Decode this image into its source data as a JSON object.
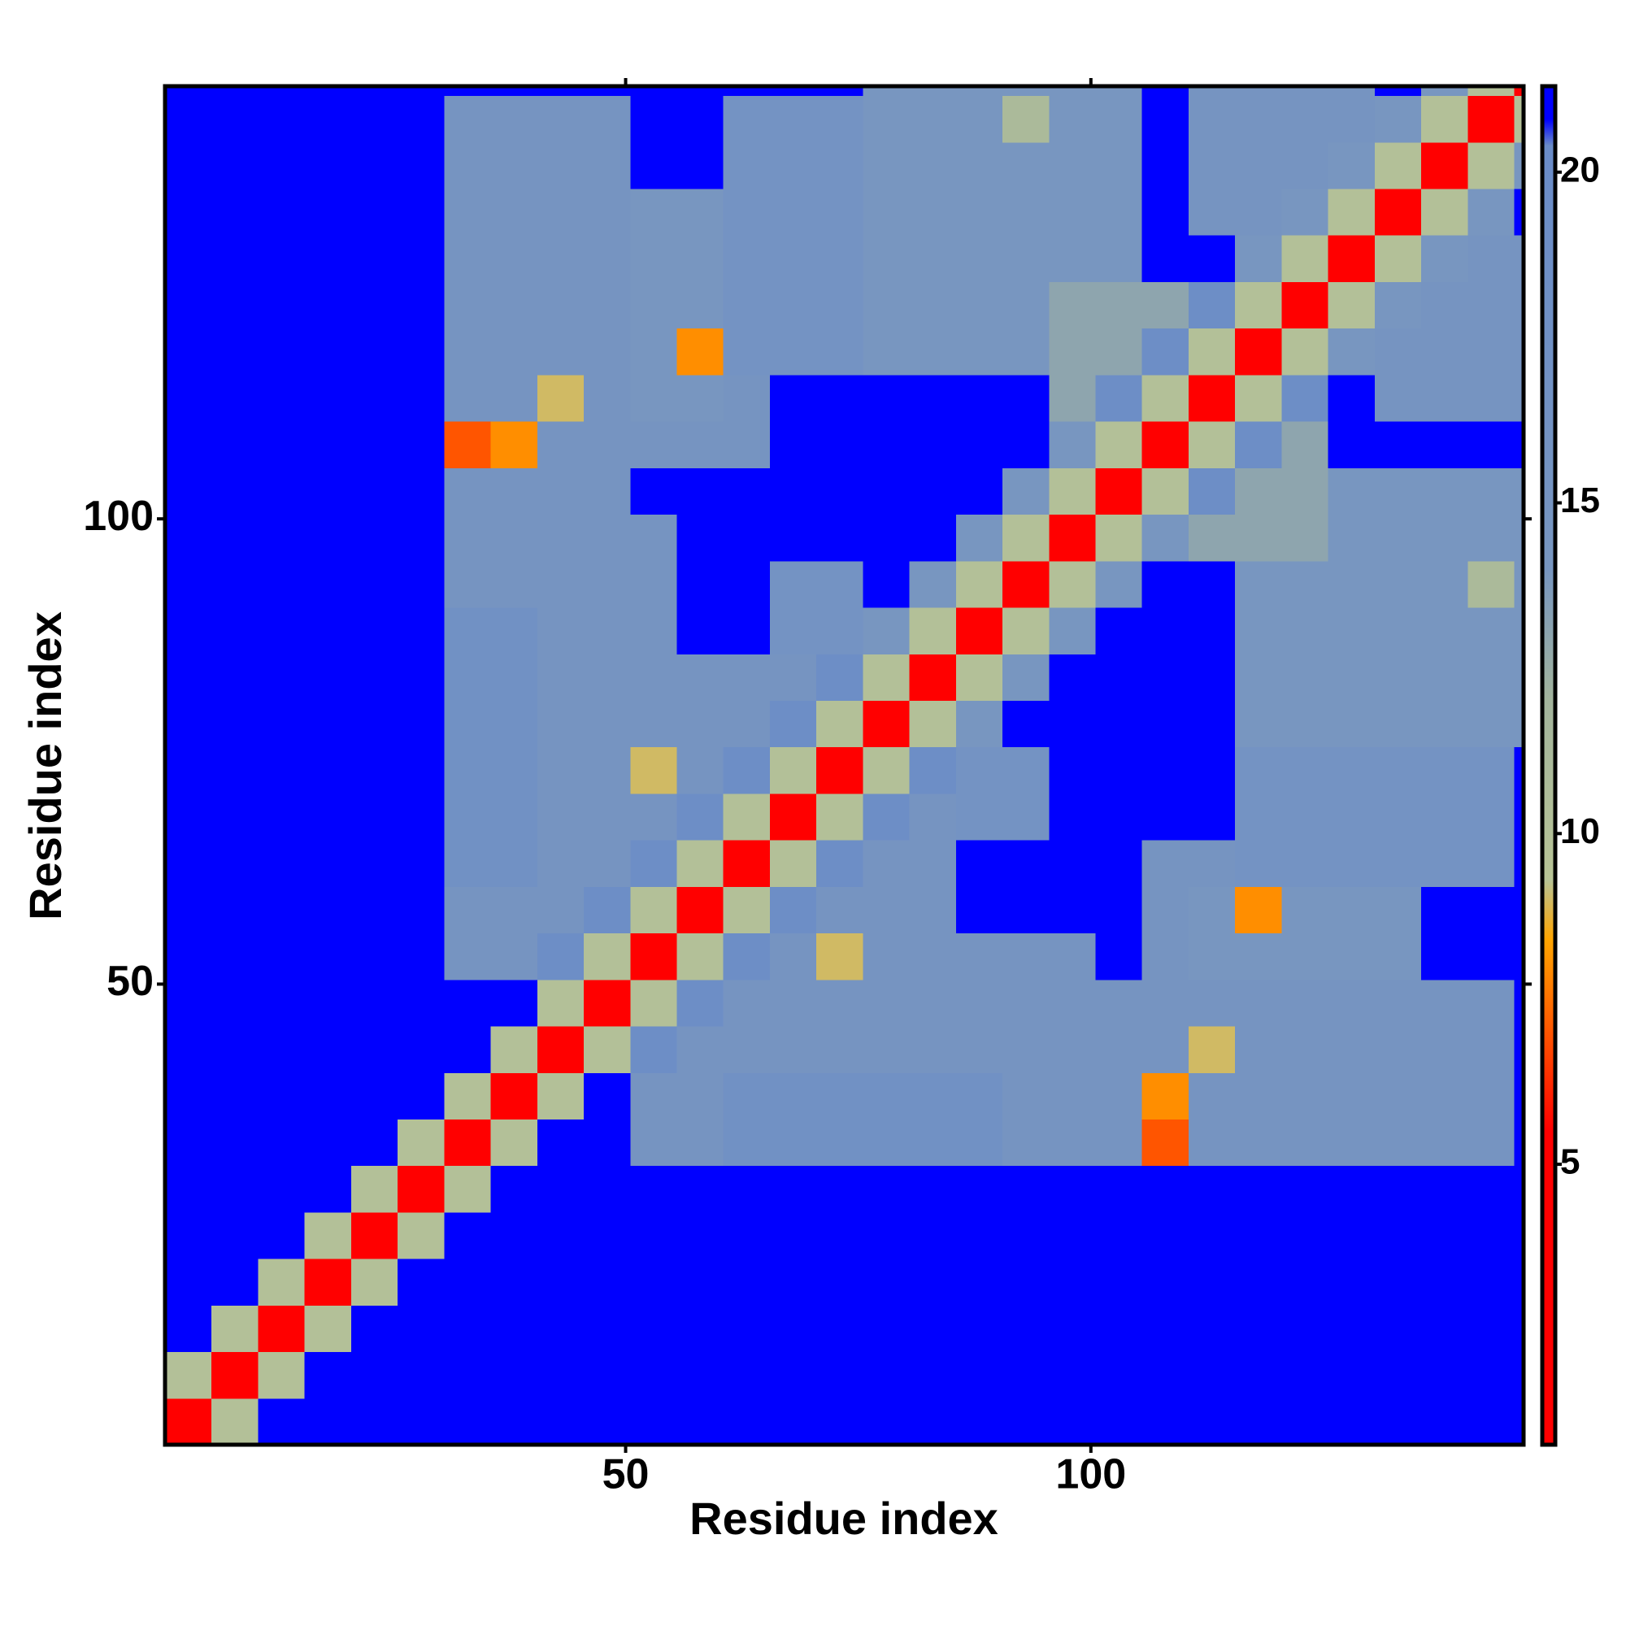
{
  "chart_data": {
    "type": "heatmap",
    "xlabel": "Residue index",
    "ylabel": "Residue index",
    "x": [
      3,
      8,
      13,
      18,
      23,
      28,
      33,
      38,
      43,
      48,
      53,
      58,
      63,
      68,
      73,
      78,
      83,
      88,
      93,
      98,
      103,
      108,
      113,
      118,
      123,
      128,
      133,
      138,
      143,
      148
    ],
    "y": [
      3,
      8,
      13,
      18,
      23,
      28,
      33,
      38,
      43,
      48,
      53,
      58,
      63,
      68,
      73,
      78,
      83,
      88,
      93,
      98,
      103,
      108,
      113,
      118,
      123,
      128,
      133,
      138,
      143,
      148
    ],
    "xlim": [
      0.5,
      146.5
    ],
    "ylim": [
      0.5,
      146.5
    ],
    "xticks": [
      50,
      100
    ],
    "yticks": [
      50,
      100
    ],
    "zlim": [
      0.76,
      21.3
    ],
    "zticks": [
      5,
      10,
      15,
      20
    ],
    "colorscale": [
      [
        0.76,
        "#ff0000"
      ],
      [
        5.5,
        "#ff0000"
      ],
      [
        8.4,
        "#ffa500"
      ],
      [
        9.3,
        "#b8c496"
      ],
      [
        12,
        "#a3b49c"
      ],
      [
        14,
        "#7896c0"
      ],
      [
        20.4,
        "#6a8cc8"
      ],
      [
        20.8,
        "#0000ff"
      ],
      [
        21.3,
        "#0000ff"
      ]
    ],
    "z": [
      [
        2,
        10,
        21,
        21,
        21,
        21,
        21,
        21,
        21,
        21,
        21,
        21,
        21,
        21,
        21,
        21,
        21,
        21,
        21,
        21,
        21,
        21,
        21,
        21,
        21,
        21,
        21,
        21,
        21,
        21
      ],
      [
        10,
        2,
        10,
        21,
        21,
        21,
        21,
        21,
        21,
        21,
        21,
        21,
        21,
        21,
        21,
        21,
        21,
        21,
        21,
        21,
        21,
        21,
        21,
        21,
        21,
        21,
        21,
        21,
        21,
        21
      ],
      [
        21,
        10,
        2,
        10,
        21,
        21,
        21,
        21,
        21,
        21,
        21,
        21,
        21,
        21,
        21,
        21,
        21,
        21,
        21,
        21,
        21,
        21,
        21,
        21,
        21,
        21,
        21,
        21,
        21,
        21
      ],
      [
        21,
        21,
        10,
        2,
        10,
        21,
        21,
        21,
        21,
        21,
        21,
        21,
        21,
        21,
        21,
        21,
        21,
        21,
        21,
        21,
        21,
        21,
        21,
        21,
        21,
        21,
        21,
        21,
        21,
        21
      ],
      [
        21,
        21,
        21,
        10,
        2,
        10,
        21,
        21,
        21,
        21,
        21,
        21,
        21,
        21,
        21,
        21,
        21,
        21,
        21,
        21,
        21,
        21,
        21,
        21,
        21,
        21,
        21,
        21,
        21,
        21
      ],
      [
        21,
        21,
        21,
        21,
        10,
        2,
        10,
        21,
        21,
        21,
        21,
        21,
        21,
        21,
        21,
        21,
        21,
        21,
        21,
        21,
        21,
        21,
        21,
        21,
        21,
        21,
        21,
        21,
        21,
        21
      ],
      [
        21,
        21,
        21,
        21,
        21,
        10,
        2,
        10,
        21,
        21,
        15,
        15,
        17,
        17,
        17,
        17,
        17,
        17,
        15,
        15,
        15,
        7,
        15,
        15,
        15,
        15,
        15,
        15,
        15,
        21
      ],
      [
        21,
        21,
        21,
        21,
        21,
        21,
        10,
        2,
        10,
        21,
        15,
        15,
        17,
        17,
        17,
        17,
        17,
        17,
        15,
        15,
        15,
        8,
        15,
        15,
        15,
        15,
        15,
        15,
        15,
        21
      ],
      [
        21,
        21,
        21,
        21,
        21,
        21,
        21,
        10,
        2,
        10,
        19,
        15,
        15,
        15,
        15,
        15,
        15,
        15,
        15,
        15,
        15,
        15,
        9,
        15,
        15,
        15,
        15,
        15,
        15,
        21
      ],
      [
        21,
        21,
        21,
        21,
        21,
        21,
        21,
        21,
        10,
        2,
        10,
        19,
        15,
        15,
        15,
        15,
        15,
        15,
        15,
        15,
        15,
        15,
        15,
        15,
        15,
        15,
        15,
        15,
        15,
        21
      ],
      [
        21,
        21,
        21,
        21,
        21,
        21,
        15,
        15,
        19,
        10,
        2,
        10,
        19,
        15,
        9,
        15,
        15,
        15,
        15,
        15,
        21,
        15,
        14,
        14,
        14,
        14,
        14,
        21,
        21,
        21
      ],
      [
        21,
        21,
        21,
        21,
        21,
        21,
        15,
        15,
        15,
        19,
        10,
        2,
        10,
        19,
        15,
        15,
        15,
        21,
        21,
        21,
        21,
        15,
        14,
        8,
        14,
        14,
        14,
        21,
        21,
        21
      ],
      [
        21,
        21,
        21,
        21,
        21,
        21,
        17,
        17,
        15,
        15,
        19,
        10,
        2,
        10,
        19,
        15,
        15,
        21,
        21,
        21,
        21,
        15,
        15,
        16,
        16,
        16,
        16,
        16,
        16,
        21
      ],
      [
        21,
        21,
        21,
        21,
        21,
        21,
        17,
        17,
        15,
        15,
        15,
        19,
        10,
        2,
        10,
        19,
        15,
        16,
        16,
        21,
        21,
        21,
        21,
        16,
        16,
        16,
        16,
        16,
        16,
        21
      ],
      [
        21,
        21,
        21,
        21,
        21,
        21,
        17,
        17,
        15,
        15,
        9,
        15,
        19,
        10,
        2,
        10,
        19,
        16,
        16,
        21,
        21,
        21,
        21,
        16,
        16,
        16,
        16,
        16,
        16,
        21
      ],
      [
        21,
        21,
        21,
        21,
        21,
        21,
        17,
        17,
        15,
        15,
        15,
        15,
        15,
        19,
        10,
        2,
        10,
        14,
        21,
        21,
        21,
        21,
        21,
        14,
        14,
        14,
        14,
        14,
        14,
        14
      ],
      [
        21,
        21,
        21,
        21,
        21,
        21,
        17,
        17,
        15,
        15,
        15,
        15,
        15,
        15,
        19,
        10,
        2,
        10,
        14,
        21,
        21,
        21,
        21,
        14,
        14,
        14,
        14,
        14,
        14,
        14
      ],
      [
        21,
        21,
        21,
        21,
        21,
        21,
        17,
        17,
        15,
        15,
        15,
        21,
        21,
        16,
        16,
        14,
        10,
        2,
        10,
        14,
        21,
        21,
        21,
        14,
        14,
        14,
        14,
        14,
        14,
        14
      ],
      [
        21,
        21,
        21,
        21,
        21,
        21,
        15,
        15,
        15,
        15,
        15,
        21,
        21,
        16,
        16,
        21,
        14,
        10,
        2,
        10,
        14,
        21,
        21,
        14,
        14,
        14,
        14,
        14,
        11,
        14
      ],
      [
        21,
        21,
        21,
        21,
        21,
        21,
        15,
        15,
        15,
        15,
        15,
        21,
        21,
        21,
        21,
        21,
        21,
        14,
        10,
        2,
        10,
        14,
        13,
        13,
        13,
        14,
        14,
        14,
        14,
        14
      ],
      [
        21,
        21,
        21,
        21,
        21,
        21,
        15,
        15,
        15,
        15,
        21,
        21,
        21,
        21,
        21,
        21,
        21,
        21,
        14,
        10,
        2,
        10,
        19,
        13,
        13,
        14,
        14,
        14,
        14,
        14
      ],
      [
        21,
        21,
        21,
        21,
        21,
        21,
        7,
        8,
        15,
        15,
        15,
        15,
        15,
        21,
        21,
        21,
        21,
        21,
        21,
        14,
        10,
        2,
        10,
        19,
        13,
        21,
        21,
        21,
        21,
        21
      ],
      [
        21,
        21,
        21,
        21,
        21,
        21,
        15,
        15,
        9,
        15,
        14,
        14,
        15,
        21,
        21,
        21,
        21,
        21,
        21,
        13,
        19,
        10,
        2,
        10,
        19,
        21,
        15,
        15,
        15,
        15
      ],
      [
        21,
        21,
        21,
        21,
        21,
        21,
        15,
        15,
        15,
        15,
        14,
        8,
        16,
        16,
        16,
        14,
        14,
        14,
        14,
        13,
        13,
        19,
        10,
        2,
        10,
        14,
        15,
        15,
        15,
        15
      ],
      [
        21,
        21,
        21,
        21,
        21,
        21,
        15,
        15,
        15,
        15,
        14,
        14,
        16,
        16,
        16,
        14,
        14,
        14,
        14,
        13,
        13,
        13,
        19,
        10,
        2,
        10,
        14,
        15,
        15,
        15
      ],
      [
        21,
        21,
        21,
        21,
        21,
        21,
        15,
        15,
        15,
        15,
        14,
        14,
        16,
        16,
        16,
        14,
        14,
        14,
        14,
        14,
        14,
        21,
        21,
        14,
        10,
        2,
        10,
        14,
        15,
        15
      ],
      [
        21,
        21,
        21,
        21,
        21,
        21,
        15,
        15,
        15,
        15,
        14,
        14,
        16,
        16,
        16,
        14,
        14,
        14,
        14,
        14,
        14,
        21,
        15,
        15,
        14,
        10,
        2,
        10,
        14,
        21
      ],
      [
        21,
        21,
        21,
        21,
        21,
        21,
        15,
        15,
        15,
        15,
        21,
        21,
        16,
        16,
        16,
        14,
        14,
        14,
        14,
        14,
        14,
        21,
        15,
        15,
        15,
        14,
        10,
        2,
        10,
        14
      ],
      [
        21,
        21,
        21,
        21,
        21,
        21,
        15,
        15,
        15,
        15,
        21,
        21,
        16,
        16,
        16,
        14,
        14,
        14,
        11,
        14,
        14,
        21,
        15,
        15,
        15,
        15,
        14,
        10,
        2,
        10
      ],
      [
        21,
        21,
        21,
        21,
        21,
        21,
        21,
        21,
        21,
        21,
        21,
        21,
        21,
        21,
        21,
        14,
        14,
        14,
        14,
        14,
        14,
        21,
        15,
        15,
        15,
        15,
        21,
        14,
        10,
        2
      ]
    ]
  }
}
